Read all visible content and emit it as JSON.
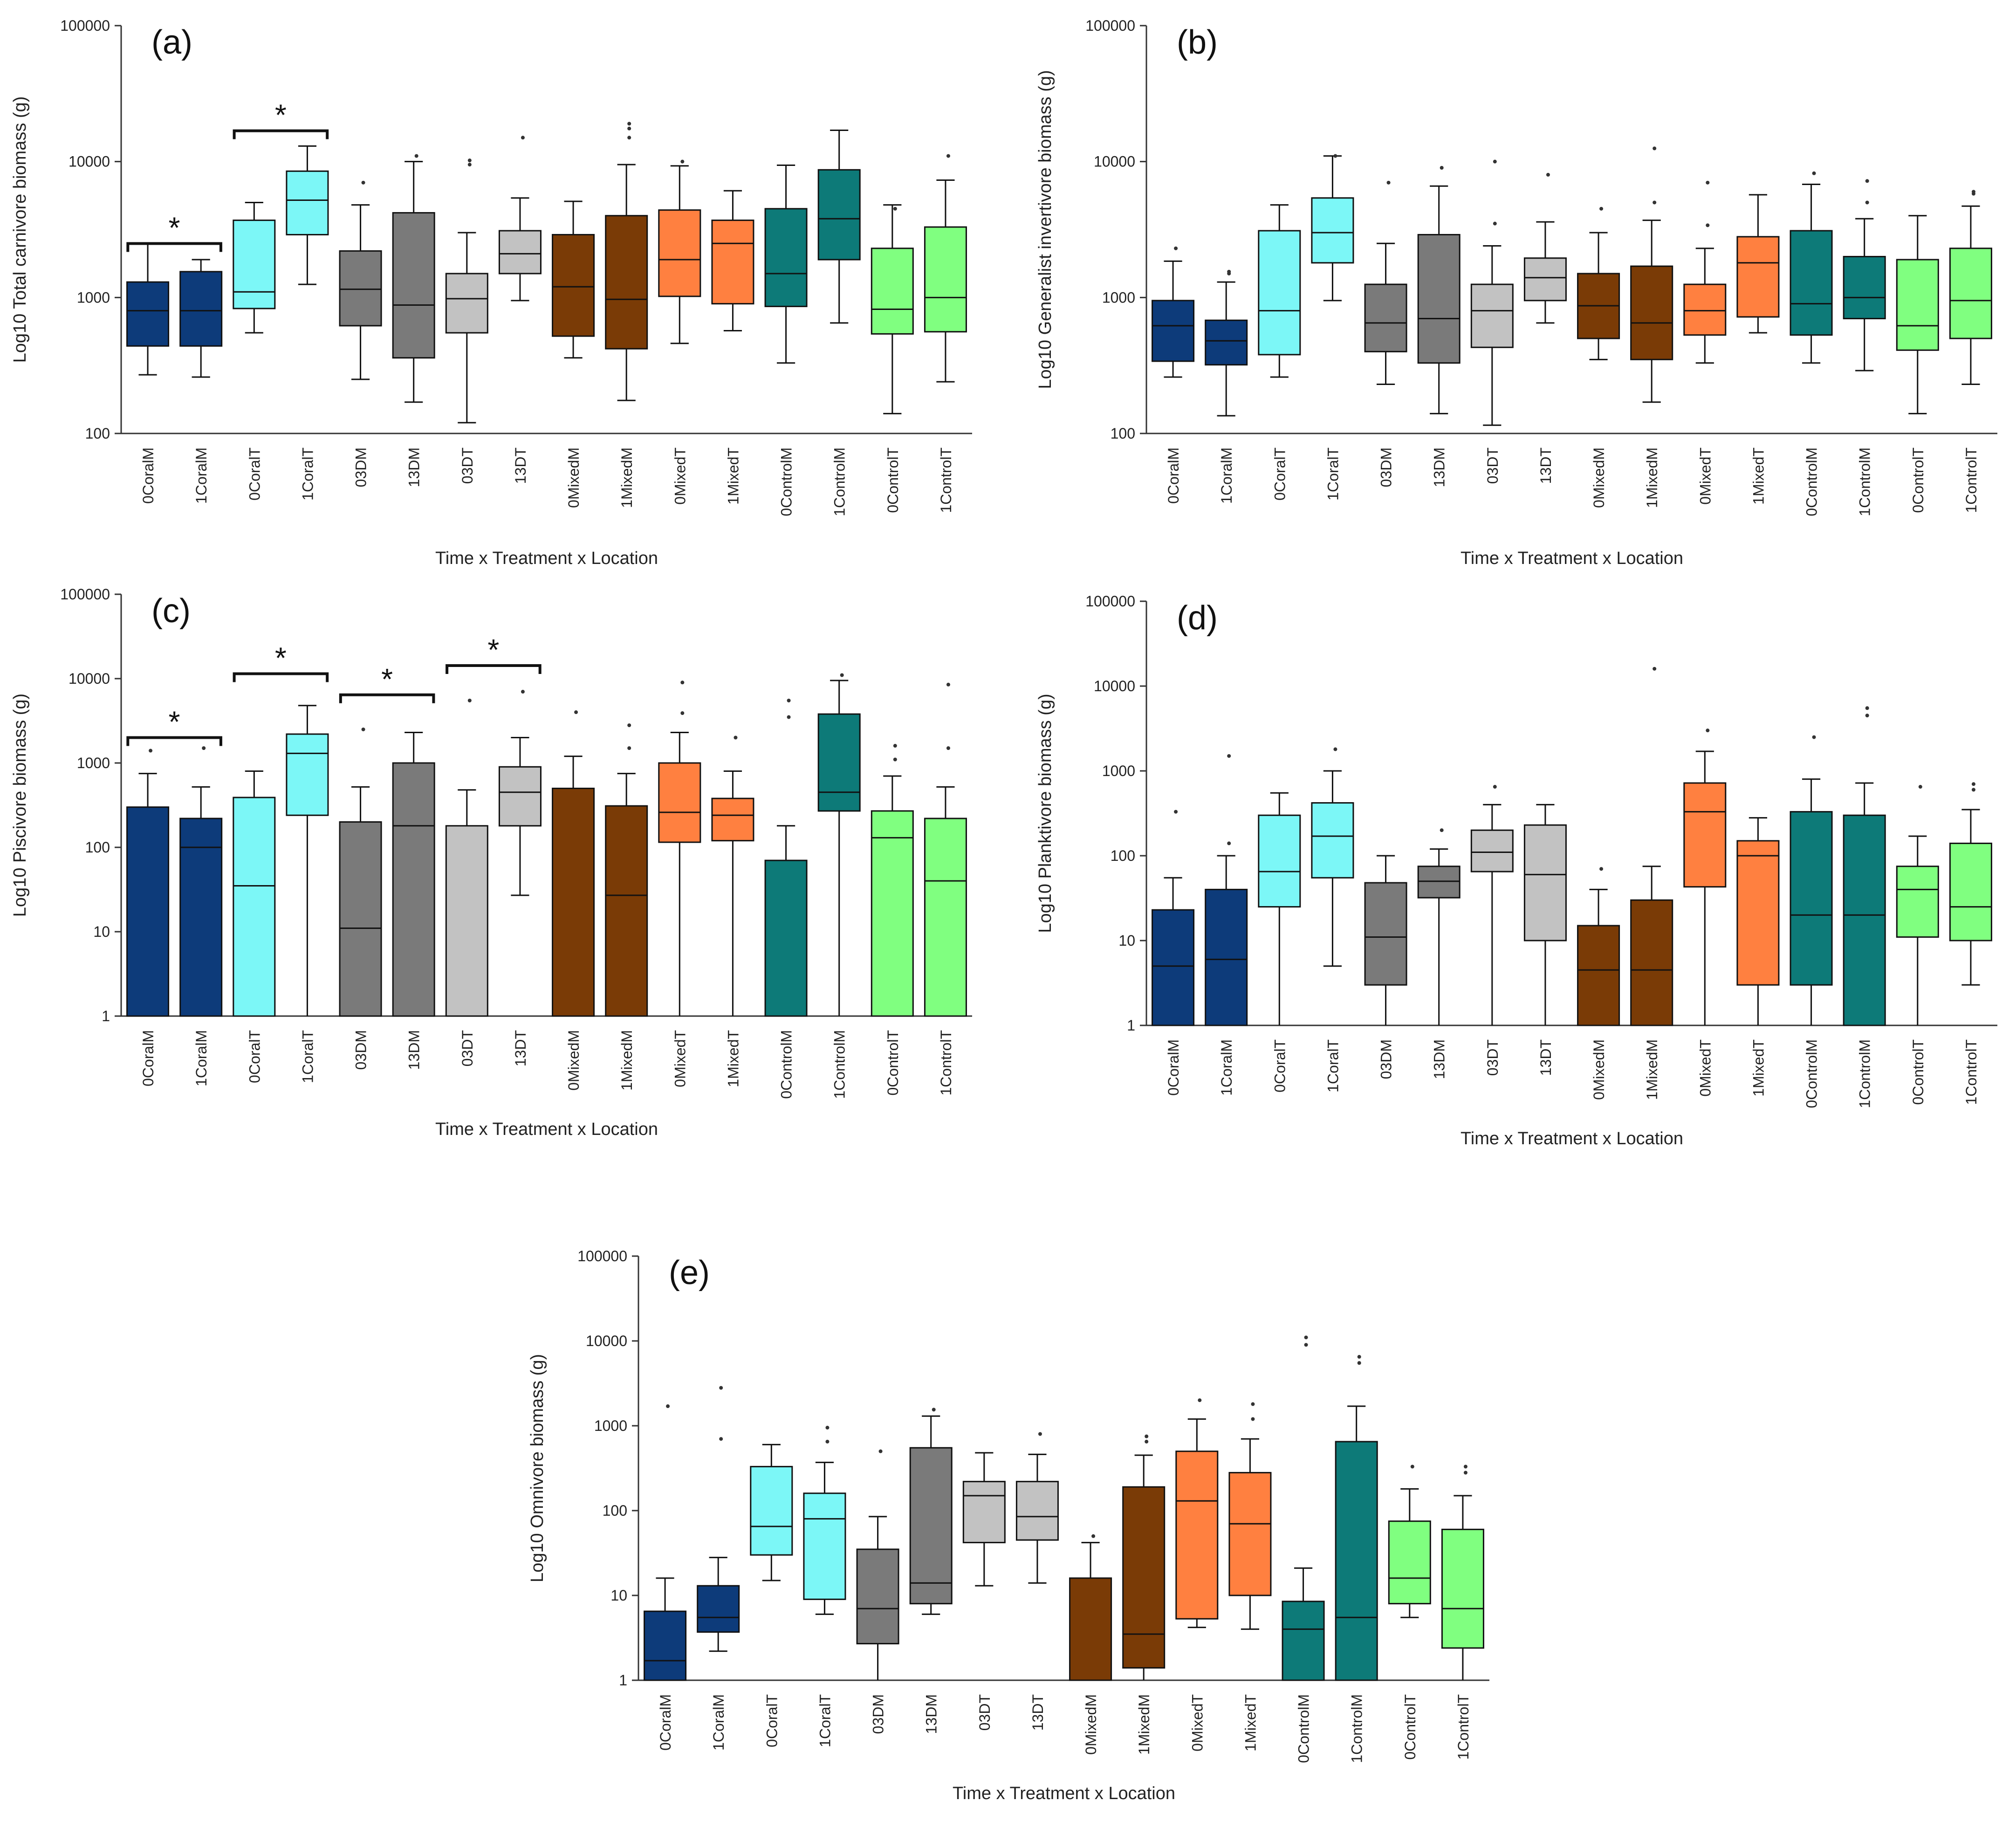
{
  "categories": [
    "0CoralM",
    "1CoralM",
    "0CoralT",
    "1CoralT",
    "03DM",
    "13DM",
    "03DT",
    "13DT",
    "0MixedM",
    "1MixedM",
    "0MixedT",
    "1MixedT",
    "0ControlM",
    "1ControlM",
    "0ControlT",
    "1ControlT"
  ],
  "colors": [
    "#0d3b7a",
    "#0d3b7a",
    "#7cf7f7",
    "#7cf7f7",
    "#7a7a7a",
    "#7a7a7a",
    "#c2c2c2",
    "#c2c2c2",
    "#7a3b06",
    "#7a3b06",
    "#ff8040",
    "#ff8040",
    "#0d7a78",
    "#0d7a78",
    "#80ff80",
    "#80ff80"
  ],
  "chart_data": [
    {
      "type": "box",
      "panel_label": "(a)",
      "xlabel": "Time x Treatment x Location",
      "ylabel": "Log10 Total carnivore biomass (g)",
      "yscale": "log",
      "ylim": [
        100,
        100000
      ],
      "yticks": [
        "100",
        "1000",
        "10000",
        "100000"
      ],
      "boxes": [
        {
          "min": 270,
          "q1": 440,
          "median": 800,
          "q3": 1300,
          "max": 2500,
          "outliers": []
        },
        {
          "min": 260,
          "q1": 440,
          "median": 800,
          "q3": 1550,
          "max": 1900,
          "outliers": []
        },
        {
          "min": 550,
          "q1": 830,
          "median": 1100,
          "q3": 3700,
          "max": 5000,
          "outliers": []
        },
        {
          "min": 1250,
          "q1": 2900,
          "median": 5200,
          "q3": 8500,
          "max": 13000,
          "outliers": []
        },
        {
          "min": 250,
          "q1": 620,
          "median": 1150,
          "q3": 2200,
          "max": 4800,
          "outliers": [
            7000
          ]
        },
        {
          "min": 170,
          "q1": 360,
          "median": 880,
          "q3": 4200,
          "max": 10000,
          "outliers": [
            11000
          ]
        },
        {
          "min": 120,
          "q1": 550,
          "median": 980,
          "q3": 1500,
          "max": 3000,
          "outliers": [
            9500,
            10200
          ]
        },
        {
          "min": 950,
          "q1": 1500,
          "median": 2100,
          "q3": 3100,
          "max": 5400,
          "outliers": [
            15000
          ]
        },
        {
          "min": 360,
          "q1": 520,
          "median": 1200,
          "q3": 2900,
          "max": 5100,
          "outliers": []
        },
        {
          "min": 175,
          "q1": 420,
          "median": 970,
          "q3": 4000,
          "max": 9500,
          "outliers": [
            15000,
            17500,
            19000
          ]
        },
        {
          "min": 460,
          "q1": 1020,
          "median": 1900,
          "q3": 4400,
          "max": 9300,
          "outliers": [
            10000
          ]
        },
        {
          "min": 570,
          "q1": 900,
          "median": 2500,
          "q3": 3700,
          "max": 6100,
          "outliers": []
        },
        {
          "min": 330,
          "q1": 860,
          "median": 1500,
          "q3": 4500,
          "max": 9400,
          "outliers": []
        },
        {
          "min": 650,
          "q1": 1900,
          "median": 3800,
          "q3": 8700,
          "max": 17000,
          "outliers": []
        },
        {
          "min": 140,
          "q1": 540,
          "median": 820,
          "q3": 2300,
          "max": 4800,
          "outliers": [
            4500
          ]
        },
        {
          "min": 240,
          "q1": 560,
          "median": 1000,
          "q3": 3300,
          "max": 7300,
          "outliers": [
            11000
          ]
        }
      ],
      "significance": [
        {
          "from": 0,
          "to": 1,
          "y": 2000,
          "label": "*"
        },
        {
          "from": 2,
          "to": 3,
          "y": 13500,
          "label": "*"
        }
      ]
    },
    {
      "type": "box",
      "panel_label": "(b)",
      "xlabel": "Time x Treatment x Location",
      "ylabel": "Log10 Generalist invertivore biomass (g)",
      "yscale": "log",
      "ylim": [
        100,
        100000
      ],
      "yticks": [
        "100",
        "1000",
        "10000",
        "100000"
      ],
      "boxes": [
        {
          "min": 260,
          "q1": 340,
          "median": 620,
          "q3": 950,
          "max": 1850,
          "outliers": [
            2300
          ]
        },
        {
          "min": 135,
          "q1": 320,
          "median": 480,
          "q3": 680,
          "max": 1300,
          "outliers": [
            1500,
            1550
          ]
        },
        {
          "min": 260,
          "q1": 380,
          "median": 800,
          "q3": 3100,
          "max": 4800,
          "outliers": []
        },
        {
          "min": 950,
          "q1": 1800,
          "median": 3000,
          "q3": 5400,
          "max": 11000,
          "outliers": [
            11000
          ]
        },
        {
          "min": 230,
          "q1": 400,
          "median": 650,
          "q3": 1250,
          "max": 2500,
          "outliers": [
            7000
          ]
        },
        {
          "min": 140,
          "q1": 330,
          "median": 700,
          "q3": 2900,
          "max": 6600,
          "outliers": [
            9000
          ]
        },
        {
          "min": 115,
          "q1": 430,
          "median": 800,
          "q3": 1250,
          "max": 2400,
          "outliers": [
            3500,
            10000
          ]
        },
        {
          "min": 650,
          "q1": 950,
          "median": 1400,
          "q3": 1950,
          "max": 3600,
          "outliers": [
            8000
          ]
        },
        {
          "min": 350,
          "q1": 500,
          "median": 870,
          "q3": 1500,
          "max": 3000,
          "outliers": [
            4500
          ]
        },
        {
          "min": 170,
          "q1": 350,
          "median": 650,
          "q3": 1700,
          "max": 3700,
          "outliers": [
            5000,
            12500
          ]
        },
        {
          "min": 330,
          "q1": 530,
          "median": 800,
          "q3": 1250,
          "max": 2300,
          "outliers": [
            3400,
            7000
          ]
        },
        {
          "min": 550,
          "q1": 720,
          "median": 1800,
          "q3": 2800,
          "max": 5700,
          "outliers": []
        },
        {
          "min": 330,
          "q1": 530,
          "median": 900,
          "q3": 3100,
          "max": 6800,
          "outliers": [
            8200
          ]
        },
        {
          "min": 290,
          "q1": 700,
          "median": 1000,
          "q3": 2000,
          "max": 3800,
          "outliers": [
            5000,
            7200
          ]
        },
        {
          "min": 140,
          "q1": 410,
          "median": 620,
          "q3": 1900,
          "max": 4000,
          "outliers": []
        },
        {
          "min": 230,
          "q1": 500,
          "median": 950,
          "q3": 2300,
          "max": 4700,
          "outliers": [
            5800,
            6000
          ]
        }
      ],
      "significance": []
    },
    {
      "type": "box",
      "panel_label": "(c)",
      "xlabel": "Time x Treatment x Location",
      "ylabel": "Log10 Piscivore biomass (g)",
      "yscale": "log",
      "ylim": [
        1,
        100000
      ],
      "yticks": [
        "1",
        "10",
        "100",
        "1000",
        "10000",
        "100000"
      ],
      "boxes": [
        {
          "min": 1,
          "q1": 1,
          "median": 1,
          "q3": 300,
          "max": 750,
          "outliers": [
            1400
          ]
        },
        {
          "min": 1,
          "q1": 1,
          "median": 100,
          "q3": 220,
          "max": 520,
          "outliers": [
            1500
          ]
        },
        {
          "min": 1,
          "q1": 1,
          "median": 35,
          "q3": 390,
          "max": 800,
          "outliers": []
        },
        {
          "min": 1,
          "q1": 240,
          "median": 1300,
          "q3": 2200,
          "max": 4800,
          "outliers": []
        },
        {
          "min": 1,
          "q1": 1,
          "median": 11,
          "q3": 200,
          "max": 520,
          "outliers": [
            2500
          ]
        },
        {
          "min": 1,
          "q1": 1,
          "median": 180,
          "q3": 1000,
          "max": 2300,
          "outliers": []
        },
        {
          "min": 1,
          "q1": 1,
          "median": 1,
          "q3": 180,
          "max": 480,
          "outliers": [
            5500
          ]
        },
        {
          "min": 27,
          "q1": 180,
          "median": 450,
          "q3": 900,
          "max": 2000,
          "outliers": [
            7000
          ]
        },
        {
          "min": 1,
          "q1": 1,
          "median": 1,
          "q3": 500,
          "max": 1200,
          "outliers": [
            4000
          ]
        },
        {
          "min": 1,
          "q1": 1,
          "median": 27,
          "q3": 310,
          "max": 750,
          "outliers": [
            1500,
            2800
          ]
        },
        {
          "min": 1,
          "q1": 115,
          "median": 260,
          "q3": 1000,
          "max": 2300,
          "outliers": [
            3900,
            9000
          ]
        },
        {
          "min": 1,
          "q1": 120,
          "median": 240,
          "q3": 380,
          "max": 800,
          "outliers": [
            2000
          ]
        },
        {
          "min": 1,
          "q1": 1,
          "median": 1,
          "q3": 70,
          "max": 180,
          "outliers": [
            3500,
            5500
          ]
        },
        {
          "min": 1,
          "q1": 270,
          "median": 450,
          "q3": 3800,
          "max": 9500,
          "outliers": [
            11000
          ]
        },
        {
          "min": 1,
          "q1": 1,
          "median": 130,
          "q3": 270,
          "max": 700,
          "outliers": [
            1100,
            1600
          ]
        },
        {
          "min": 1,
          "q1": 1,
          "median": 40,
          "q3": 220,
          "max": 520,
          "outliers": [
            1500,
            8500
          ]
        }
      ],
      "significance": [
        {
          "from": 0,
          "to": 1,
          "y": 1400,
          "label": "*"
        },
        {
          "from": 2,
          "to": 3,
          "y": 8000,
          "label": "*"
        },
        {
          "from": 4,
          "to": 5,
          "y": 4500,
          "label": "*"
        },
        {
          "from": 6,
          "to": 7,
          "y": 10000,
          "label": "*"
        }
      ]
    },
    {
      "type": "box",
      "panel_label": "(d)",
      "xlabel": "Time x Treatment x Location",
      "ylabel": "Log10 Planktivore biomass (g)",
      "yscale": "log",
      "ylim": [
        1,
        100000
      ],
      "yticks": [
        "1",
        "10",
        "100",
        "1000",
        "10000",
        "100000"
      ],
      "boxes": [
        {
          "min": 1,
          "q1": 1,
          "median": 5,
          "q3": 23,
          "max": 55,
          "outliers": [
            330
          ]
        },
        {
          "min": 1,
          "q1": 1,
          "median": 6,
          "q3": 40,
          "max": 100,
          "outliers": [
            140,
            1500
          ]
        },
        {
          "min": 1,
          "q1": 25,
          "median": 65,
          "q3": 300,
          "max": 550,
          "outliers": []
        },
        {
          "min": 5,
          "q1": 55,
          "median": 170,
          "q3": 420,
          "max": 1000,
          "outliers": [
            1800
          ]
        },
        {
          "min": 1,
          "q1": 3,
          "median": 11,
          "q3": 48,
          "max": 100,
          "outliers": []
        },
        {
          "min": 1,
          "q1": 32,
          "median": 50,
          "q3": 75,
          "max": 120,
          "outliers": [
            200
          ]
        },
        {
          "min": 1,
          "q1": 65,
          "median": 110,
          "q3": 200,
          "max": 400,
          "outliers": [
            650
          ]
        },
        {
          "min": 1,
          "q1": 10,
          "median": 60,
          "q3": 230,
          "max": 400,
          "outliers": []
        },
        {
          "min": 1,
          "q1": 1,
          "median": 4.5,
          "q3": 15,
          "max": 40,
          "outliers": [
            70
          ]
        },
        {
          "min": 1,
          "q1": 1,
          "median": 4.5,
          "q3": 30,
          "max": 75,
          "outliers": [
            16000
          ]
        },
        {
          "min": 1,
          "q1": 43,
          "median": 330,
          "q3": 720,
          "max": 1700,
          "outliers": [
            3000
          ]
        },
        {
          "min": 1,
          "q1": 3,
          "median": 100,
          "q3": 150,
          "max": 280,
          "outliers": []
        },
        {
          "min": 1,
          "q1": 3,
          "median": 20,
          "q3": 330,
          "max": 800,
          "outliers": [
            2500
          ]
        },
        {
          "min": 1,
          "q1": 1,
          "median": 20,
          "q3": 300,
          "max": 720,
          "outliers": [
            4500,
            5500
          ]
        },
        {
          "min": 1,
          "q1": 11,
          "median": 40,
          "q3": 75,
          "max": 170,
          "outliers": [
            650
          ]
        },
        {
          "min": 3,
          "q1": 10,
          "median": 25,
          "q3": 140,
          "max": 350,
          "outliers": [
            600,
            700
          ]
        }
      ],
      "significance": []
    },
    {
      "type": "box",
      "panel_label": "(e)",
      "xlabel": "Time x Treatment x Location",
      "ylabel": "Log10 Omnivore biomass (g)",
      "yscale": "log",
      "ylim": [
        1,
        100000
      ],
      "yticks": [
        "1",
        "10",
        "100",
        "1000",
        "10000",
        "100000"
      ],
      "boxes": [
        {
          "min": 1,
          "q1": 1,
          "median": 1.7,
          "q3": 6.5,
          "max": 16,
          "outliers": [
            1700
          ]
        },
        {
          "min": 2.2,
          "q1": 3.7,
          "median": 5.5,
          "q3": 13,
          "max": 28,
          "outliers": [
            700,
            2800
          ]
        },
        {
          "min": 15,
          "q1": 30,
          "median": 65,
          "q3": 330,
          "max": 600,
          "outliers": []
        },
        {
          "min": 6,
          "q1": 9,
          "median": 80,
          "q3": 160,
          "max": 370,
          "outliers": [
            650,
            950
          ]
        },
        {
          "min": 1,
          "q1": 2.7,
          "median": 7,
          "q3": 35,
          "max": 85,
          "outliers": [
            500
          ]
        },
        {
          "min": 6,
          "q1": 8,
          "median": 14,
          "q3": 550,
          "max": 1300,
          "outliers": [
            1550
          ]
        },
        {
          "min": 13,
          "q1": 42,
          "median": 150,
          "q3": 220,
          "max": 480,
          "outliers": []
        },
        {
          "min": 14,
          "q1": 45,
          "median": 85,
          "q3": 220,
          "max": 460,
          "outliers": [
            800
          ]
        },
        {
          "min": 1,
          "q1": 1,
          "median": 1,
          "q3": 16,
          "max": 42,
          "outliers": [
            50
          ]
        },
        {
          "min": 1,
          "q1": 1.4,
          "median": 3.5,
          "q3": 190,
          "max": 450,
          "outliers": [
            650,
            750
          ]
        },
        {
          "min": 4.2,
          "q1": 5.3,
          "median": 130,
          "q3": 500,
          "max": 1200,
          "outliers": [
            2000
          ]
        },
        {
          "min": 4,
          "q1": 10,
          "median": 70,
          "q3": 280,
          "max": 700,
          "outliers": [
            1200,
            1800
          ]
        },
        {
          "min": 1,
          "q1": 1,
          "median": 4,
          "q3": 8.5,
          "max": 21,
          "outliers": [
            9000,
            11000
          ]
        },
        {
          "min": 1,
          "q1": 1,
          "median": 5.5,
          "q3": 650,
          "max": 1700,
          "outliers": [
            5500,
            6500
          ]
        },
        {
          "min": 5.5,
          "q1": 8,
          "median": 16,
          "q3": 75,
          "max": 180,
          "outliers": [
            330
          ]
        },
        {
          "min": 1,
          "q1": 2.4,
          "median": 7,
          "q3": 60,
          "max": 150,
          "outliers": [
            280,
            330
          ]
        }
      ],
      "significance": []
    }
  ]
}
